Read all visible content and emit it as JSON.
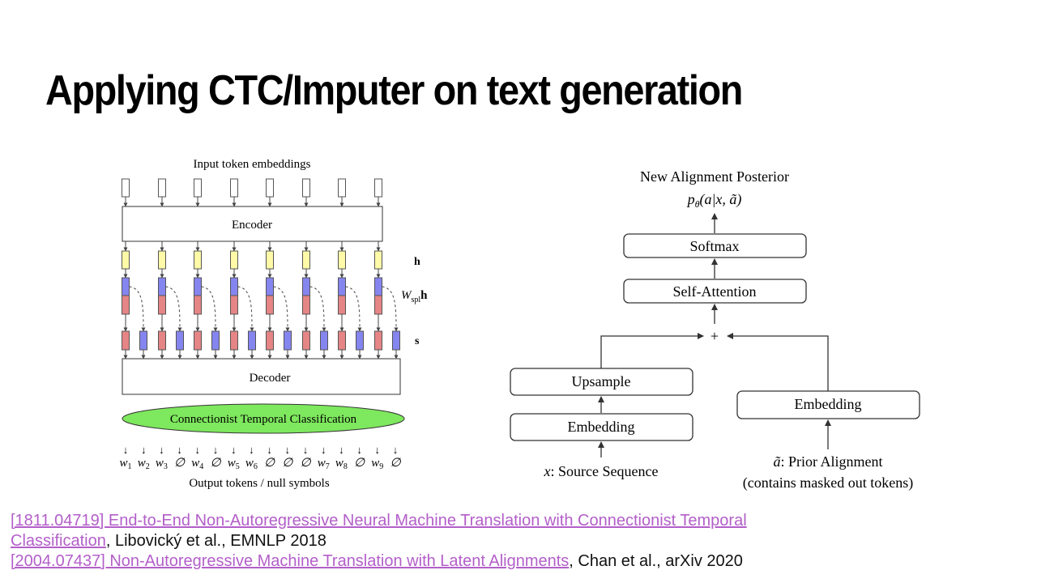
{
  "title": "Applying CTC/Imputer on text generation",
  "left_diagram": {
    "input_label": "Input token embeddings",
    "encoder": "Encoder",
    "h_label": "h",
    "wspl_label": {
      "symbol": "W",
      "subscript": "spl",
      "vector": "h"
    },
    "s_label": "s",
    "decoder": "Decoder",
    "ctc": "Connectionist Temporal Classification",
    "arrow_glyph": "↓",
    "tokens": [
      {
        "base": "w",
        "sub": "1"
      },
      {
        "base": "w",
        "sub": "2"
      },
      {
        "base": "w",
        "sub": "3"
      },
      {
        "base": "∅"
      },
      {
        "base": "w",
        "sub": "4"
      },
      {
        "base": "∅"
      },
      {
        "base": "w",
        "sub": "5"
      },
      {
        "base": "w",
        "sub": "6"
      },
      {
        "base": "∅"
      },
      {
        "base": "∅"
      },
      {
        "base": "∅"
      },
      {
        "base": "w",
        "sub": "7"
      },
      {
        "base": "w",
        "sub": "8"
      },
      {
        "base": "∅"
      },
      {
        "base": "w",
        "sub": "9"
      },
      {
        "base": "∅"
      }
    ],
    "output_label": "Output tokens / null symbols"
  },
  "right_diagram": {
    "posterior_label": "New Alignment Posterior",
    "posterior_formula": {
      "p": "p",
      "sub": "θ",
      "args": "(a|x, ã)"
    },
    "softmax": "Softmax",
    "self_attention": "Self-Attention",
    "plus": "+",
    "upsample": "Upsample",
    "embedding_left": "Embedding",
    "source_label": {
      "var": "x",
      "text": ": Source Sequence"
    },
    "embedding_right": "Embedding",
    "prior_label": {
      "var": "ã",
      "text": ": Prior Alignment"
    },
    "prior_note": "(contains masked out tokens)"
  },
  "references": [
    {
      "link": "[1811.04719] End-to-End Non-Autoregressive Neural Machine Translation with Connectionist Temporal Classification",
      "rest": ", Libovický et al., EMNLP 2018"
    },
    {
      "link": "[2004.07437] Non-Autoregressive Machine Translation with Latent Alignments",
      "rest": ", Chan et al., arXiv 2020"
    }
  ]
}
